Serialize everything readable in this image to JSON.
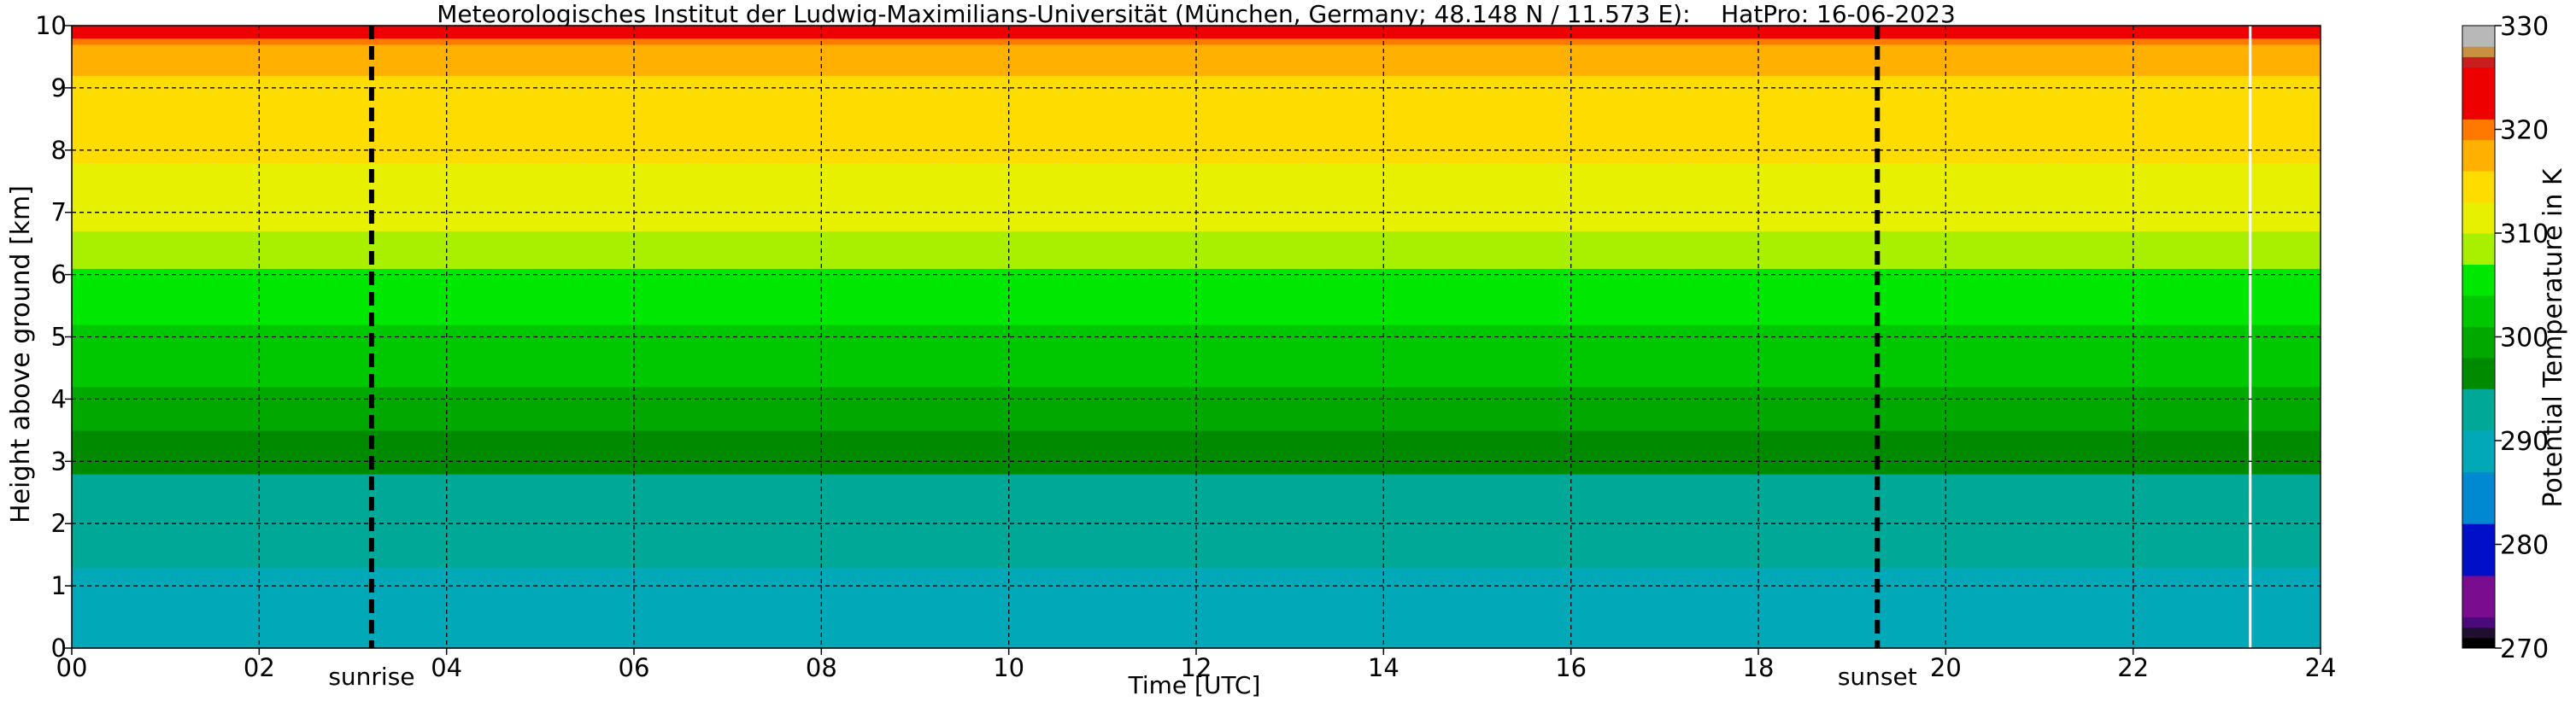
{
  "chart_data": {
    "type": "heatmap",
    "title": "Meteorologisches Institut der Ludwig-Maximilians-Universität (München, Germany; 48.148 N / 11.573 E):    HatPro: 16-06-2023",
    "xlabel": "Time [UTC]",
    "ylabel": "Height above ground [km]",
    "xlim": [
      0,
      24
    ],
    "ylim": [
      0,
      10
    ],
    "x_ticks": [
      0,
      2,
      4,
      6,
      8,
      10,
      12,
      14,
      16,
      18,
      20,
      22,
      24
    ],
    "x_tick_labels": [
      "00",
      "02",
      "04",
      "06",
      "08",
      "10",
      "12",
      "14",
      "16",
      "18",
      "20",
      "22",
      "24"
    ],
    "y_ticks": [
      0,
      1,
      2,
      3,
      4,
      5,
      6,
      7,
      8,
      9,
      10
    ],
    "y_tick_labels": [
      "0",
      "1",
      "2",
      "3",
      "4",
      "5",
      "6",
      "7",
      "8",
      "9",
      "10"
    ],
    "grid": true,
    "data_end_time": 23.25,
    "annotations": [
      {
        "label": "sunrise",
        "x": 3.2
      },
      {
        "label": "sunset",
        "x": 19.27
      }
    ],
    "colorbar": {
      "label": "Potential Temperature in K",
      "range": [
        270,
        330
      ],
      "ticks": [
        270,
        280,
        290,
        300,
        310,
        320,
        330
      ],
      "tick_labels": [
        "270",
        "280",
        "290",
        "300",
        "310",
        "320",
        "330"
      ],
      "levels": [
        {
          "from": 270,
          "to": 271,
          "color": "#000000"
        },
        {
          "from": 271,
          "to": 272,
          "color": "#201030"
        },
        {
          "from": 272,
          "to": 273,
          "color": "#4b0a7a"
        },
        {
          "from": 273,
          "to": 277,
          "color": "#7a0d8f"
        },
        {
          "from": 277,
          "to": 282,
          "color": "#0010c8"
        },
        {
          "from": 282,
          "to": 287,
          "color": "#0088d0"
        },
        {
          "from": 287,
          "to": 291,
          "color": "#00a8b8"
        },
        {
          "from": 291,
          "to": 295,
          "color": "#00a898"
        },
        {
          "from": 295,
          "to": 298,
          "color": "#008a00"
        },
        {
          "from": 298,
          "to": 301,
          "color": "#00a800"
        },
        {
          "from": 301,
          "to": 304,
          "color": "#00c800"
        },
        {
          "from": 304,
          "to": 307,
          "color": "#00e800"
        },
        {
          "from": 307,
          "to": 310,
          "color": "#a8f000"
        },
        {
          "from": 310,
          "to": 313,
          "color": "#e6f000"
        },
        {
          "from": 313,
          "to": 316,
          "color": "#ffdc00"
        },
        {
          "from": 316,
          "to": 319,
          "color": "#ffb000"
        },
        {
          "from": 319,
          "to": 321,
          "color": "#ff7800"
        },
        {
          "from": 321,
          "to": 326,
          "color": "#ee0000"
        },
        {
          "from": 326,
          "to": 327,
          "color": "#c81e1e"
        },
        {
          "from": 327,
          "to": 328,
          "color": "#c89040"
        },
        {
          "from": 328,
          "to": 330,
          "color": "#b8b8b8"
        }
      ]
    },
    "profile": [
      {
        "height": 0.0,
        "theta": 289.5
      },
      {
        "height": 1.0,
        "theta": 290.5
      },
      {
        "height": 2.0,
        "theta": 292.0
      },
      {
        "height": 2.6,
        "theta": 294.0
      },
      {
        "height": 3.0,
        "theta": 296.5
      },
      {
        "height": 3.5,
        "theta": 298.0
      },
      {
        "height": 4.0,
        "theta": 300.0
      },
      {
        "height": 4.5,
        "theta": 302.0
      },
      {
        "height": 5.0,
        "theta": 303.0
      },
      {
        "height": 5.5,
        "theta": 305.0
      },
      {
        "height": 6.0,
        "theta": 306.5
      },
      {
        "height": 6.5,
        "theta": 309.0
      },
      {
        "height": 7.0,
        "theta": 311.0
      },
      {
        "height": 7.5,
        "theta": 312.0
      },
      {
        "height": 8.0,
        "theta": 313.5
      },
      {
        "height": 8.5,
        "theta": 314.5
      },
      {
        "height": 9.0,
        "theta": 315.5
      },
      {
        "height": 9.5,
        "theta": 317.0
      },
      {
        "height": 9.75,
        "theta": 320.0
      },
      {
        "height": 10.0,
        "theta": 322.5
      }
    ]
  }
}
